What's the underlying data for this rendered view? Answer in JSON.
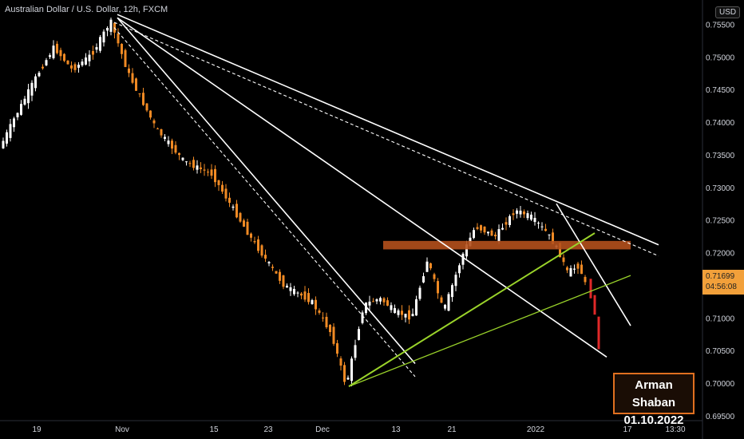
{
  "header": {
    "title": "Australian Dollar / U.S. Dollar, 12h, FXCM",
    "currency_badge": "USD"
  },
  "signature": {
    "name": "Arman Shaban",
    "date": "01.10.2022"
  },
  "price_tag": {
    "price": "0.71699",
    "countdown": "04:56:08"
  },
  "colors": {
    "background": "#000000",
    "up_candle": "#ffffff",
    "down_candle": "#f08a24",
    "last_candles": "#e02828",
    "resistance_zone": "#b4501c",
    "trendline": "#ffffff",
    "support_line": "#9ad32a",
    "price_tag": "#f2a03a",
    "signature_border": "#e07020"
  },
  "chart_data": {
    "type": "candlestick",
    "symbol": "AUDUSD",
    "timeframe": "12h",
    "x_ticks": [
      "19",
      "Nov",
      "15",
      "23",
      "Dec",
      "13",
      "21",
      "2022",
      "17",
      "13:30"
    ],
    "y_ticks": [
      "0.75500",
      "0.75000",
      "0.74500",
      "0.74000",
      "0.73500",
      "0.73000",
      "0.72500",
      "0.72000",
      "0.71500",
      "0.71000",
      "0.70500",
      "0.70000",
      "0.69500"
    ],
    "ylim": [
      0.6945,
      0.7575
    ],
    "key_prices": {
      "high": 0.7555,
      "low": 0.6995,
      "resistance_zone": [
        0.7205,
        0.7218
      ],
      "current": 0.71699
    },
    "grid": false,
    "legend": "none"
  }
}
